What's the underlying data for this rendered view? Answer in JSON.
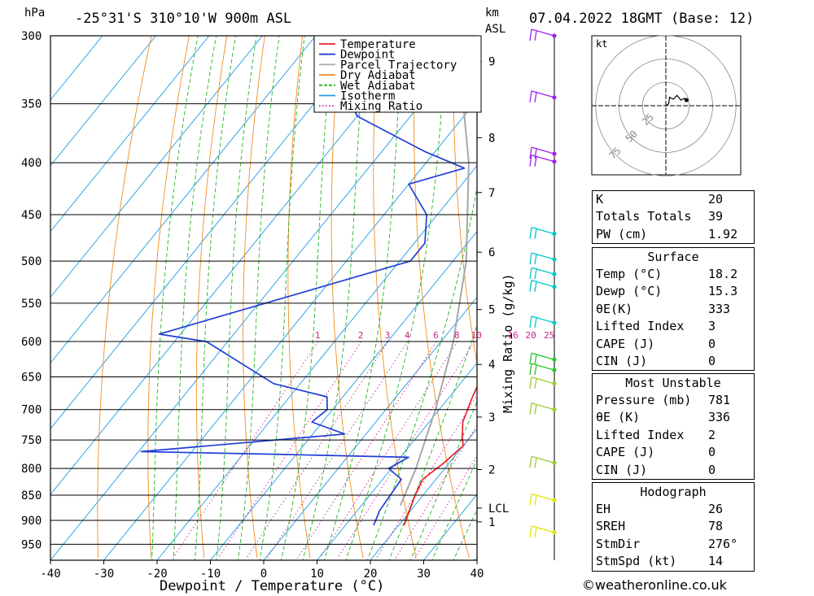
{
  "header": {
    "hpa_unit": "hPa",
    "location": "-25°31'S 310°10'W 900m ASL",
    "km_unit": "km",
    "asl_unit": "ASL",
    "datetime": "07.04.2022 18GMT (Base: 12)"
  },
  "chart_data": {
    "type": "line",
    "xlabel": "Dewpoint / Temperature (°C)",
    "mixing_ratio_axis_label": "Mixing Ratio (g/kg)",
    "x_ticks": [
      -40,
      -30,
      -20,
      -10,
      0,
      10,
      20,
      30,
      40
    ],
    "xlim": [
      -40,
      40
    ],
    "pressure_levels": [
      300,
      350,
      400,
      450,
      500,
      550,
      600,
      650,
      700,
      750,
      800,
      850,
      900,
      950
    ],
    "ylim_hpa": [
      300,
      985
    ],
    "y_scale": "log-pressure, skewed temperature",
    "km_ticks": [
      {
        "label": "9",
        "hpa": 318
      },
      {
        "label": "8",
        "hpa": 378
      },
      {
        "label": "7",
        "hpa": 428
      },
      {
        "label": "6",
        "hpa": 490
      },
      {
        "label": "5",
        "hpa": 558
      },
      {
        "label": "4",
        "hpa": 632
      },
      {
        "label": "3",
        "hpa": 712
      },
      {
        "label": "2",
        "hpa": 802
      },
      {
        "label": "LCL",
        "hpa": 875
      },
      {
        "label": "1",
        "hpa": 903
      }
    ],
    "mixing_ratio_labels": [
      "1",
      "2",
      "3",
      "4",
      "6",
      "8",
      "10",
      "16",
      "20",
      "25"
    ],
    "mixing_ratio_values": [
      1,
      2,
      3,
      4,
      6,
      8,
      10,
      16,
      20,
      25
    ],
    "legend_position": "top-right",
    "legend": [
      {
        "name": "Temperature",
        "color": "#e8202a",
        "style": "solid"
      },
      {
        "name": "Dewpoint",
        "color": "#1f3fd6",
        "style": "solid"
      },
      {
        "name": "Parcel Trajectory",
        "color": "#a8a8a8",
        "style": "solid"
      },
      {
        "name": "Dry Adiabat",
        "color": "#f08c1e",
        "style": "solid"
      },
      {
        "name": "Wet Adiabat",
        "color": "#23b423",
        "style": "dashed"
      },
      {
        "name": "Isotherm",
        "color": "#1e9be6",
        "style": "solid"
      },
      {
        "name": "Mixing Ratio",
        "color": "#d01c8b",
        "style": "dotted"
      }
    ],
    "series": [
      {
        "name": "Temperature",
        "color": "#e8202a",
        "points": [
          {
            "p": 910,
            "t": 21.0
          },
          {
            "p": 850,
            "t": 18.5
          },
          {
            "p": 820,
            "t": 17.5
          },
          {
            "p": 790,
            "t": 19.0
          },
          {
            "p": 760,
            "t": 20.0
          },
          {
            "p": 745,
            "t": 18.5
          },
          {
            "p": 720,
            "t": 16.3
          },
          {
            "p": 680,
            "t": 14.3
          },
          {
            "p": 650,
            "t": 13.0
          },
          {
            "p": 600,
            "t": 9.0
          },
          {
            "p": 550,
            "t": 5.0
          },
          {
            "p": 500,
            "t": 1.0
          },
          {
            "p": 475,
            "t": -2.6
          },
          {
            "p": 455,
            "t": -5.6
          },
          {
            "p": 420,
            "t": -10.0
          },
          {
            "p": 400,
            "t": -14.0
          },
          {
            "p": 390,
            "t": -14.0
          },
          {
            "p": 360,
            "t": -21.0
          },
          {
            "p": 350,
            "t": -24.0
          },
          {
            "p": 320,
            "t": -31.0
          },
          {
            "p": 300,
            "t": -37.0
          }
        ]
      },
      {
        "name": "Dewpoint",
        "color": "#1f3fd6",
        "points": [
          {
            "p": 910,
            "t": 15.3
          },
          {
            "p": 880,
            "t": 14.2
          },
          {
            "p": 820,
            "t": 13.5
          },
          {
            "p": 800,
            "t": 9.5
          },
          {
            "p": 780,
            "t": 11.5
          },
          {
            "p": 775,
            "t": -12.5
          },
          {
            "p": 770,
            "t": -39.5
          },
          {
            "p": 740,
            "t": -4.0
          },
          {
            "p": 720,
            "t": -12.0
          },
          {
            "p": 700,
            "t": -11.0
          },
          {
            "p": 680,
            "t": -13.0
          },
          {
            "p": 660,
            "t": -25.0
          },
          {
            "p": 600,
            "t": -44.0
          },
          {
            "p": 590,
            "t": -54.0
          },
          {
            "p": 500,
            "t": -18.0
          },
          {
            "p": 480,
            "t": -18.0
          },
          {
            "p": 450,
            "t": -22.0
          },
          {
            "p": 420,
            "t": -30.0
          },
          {
            "p": 405,
            "t": -22.0
          },
          {
            "p": 390,
            "t": -32.0
          },
          {
            "p": 360,
            "t": -50.0
          },
          {
            "p": 350,
            "t": -53.0
          },
          {
            "p": 330,
            "t": -62.0
          },
          {
            "p": 322,
            "t": -62.0
          },
          {
            "p": 316,
            "t": -45.0
          },
          {
            "p": 305,
            "t": -46.0
          },
          {
            "p": 300,
            "t": -47.0
          }
        ]
      },
      {
        "name": "Parcel Trajectory",
        "color": "#a8a8a8",
        "points": [
          {
            "p": 870,
            "t": 17.3
          },
          {
            "p": 800,
            "t": 14.6
          },
          {
            "p": 700,
            "t": 9.3
          },
          {
            "p": 600,
            "t": 2.3
          },
          {
            "p": 500,
            "t": -7.5
          },
          {
            "p": 400,
            "t": -22.0
          },
          {
            "p": 350,
            "t": -32.0
          },
          {
            "p": 320,
            "t": -40.0
          },
          {
            "p": 310,
            "t": -43.0
          }
        ]
      }
    ],
    "wind_barbs": [
      {
        "p": 300,
        "color": "#a020f0"
      },
      {
        "p": 345,
        "color": "#a020f0"
      },
      {
        "p": 392,
        "color": "#a020f0"
      },
      {
        "p": 399,
        "color": "#a020f0"
      },
      {
        "p": 470,
        "color": "#00c8c8"
      },
      {
        "p": 498,
        "color": "#00c8c8"
      },
      {
        "p": 515,
        "color": "#00c8c8"
      },
      {
        "p": 530,
        "color": "#00c8c8"
      },
      {
        "p": 575,
        "color": "#00c8c8"
      },
      {
        "p": 625,
        "color": "#23c823"
      },
      {
        "p": 640,
        "color": "#23c823"
      },
      {
        "p": 660,
        "color": "#9acd32"
      },
      {
        "p": 700,
        "color": "#9acd32"
      },
      {
        "p": 790,
        "color": "#9acd32"
      },
      {
        "p": 860,
        "color": "#e6e600"
      },
      {
        "p": 925,
        "color": "#e6e600"
      }
    ]
  },
  "hodograph": {
    "unit": "kt",
    "ring_labels": [
      "25",
      "50",
      "75"
    ],
    "points": [
      {
        "u": 0,
        "v": 0
      },
      {
        "u": 3,
        "v": 2
      },
      {
        "u": 4,
        "v": 9
      },
      {
        "u": 8,
        "v": 7
      },
      {
        "u": 12,
        "v": 11
      },
      {
        "u": 16,
        "v": 6
      },
      {
        "u": 20,
        "v": 8
      },
      {
        "u": 22,
        "v": 6
      }
    ]
  },
  "indices": [
    {
      "label": "K",
      "value": "20"
    },
    {
      "label": "Totals Totals",
      "value": "39"
    },
    {
      "label": "PW (cm)",
      "value": "1.92"
    }
  ],
  "surface": {
    "title": "Surface",
    "rows": [
      {
        "label": "Temp (°C)",
        "value": "18.2"
      },
      {
        "label": "Dewp (°C)",
        "value": "15.3"
      },
      {
        "label": "θE(K)",
        "value": "333"
      },
      {
        "label": "Lifted Index",
        "value": "3"
      },
      {
        "label": "CAPE (J)",
        "value": "0"
      },
      {
        "label": "CIN (J)",
        "value": "0"
      }
    ]
  },
  "most_unstable": {
    "title": "Most Unstable",
    "rows": [
      {
        "label": "Pressure (mb)",
        "value": "781"
      },
      {
        "label": "θE (K)",
        "value": "336"
      },
      {
        "label": "Lifted Index",
        "value": "2"
      },
      {
        "label": "CAPE (J)",
        "value": "0"
      },
      {
        "label": "CIN (J)",
        "value": "0"
      }
    ]
  },
  "hodograph_table": {
    "title": "Hodograph",
    "rows": [
      {
        "label": "EH",
        "value": "26"
      },
      {
        "label": "SREH",
        "value": "78"
      },
      {
        "label": "StmDir",
        "value": "276°"
      },
      {
        "label": "StmSpd (kt)",
        "value": "14"
      }
    ]
  },
  "credit": "©weatheronline.co.uk"
}
